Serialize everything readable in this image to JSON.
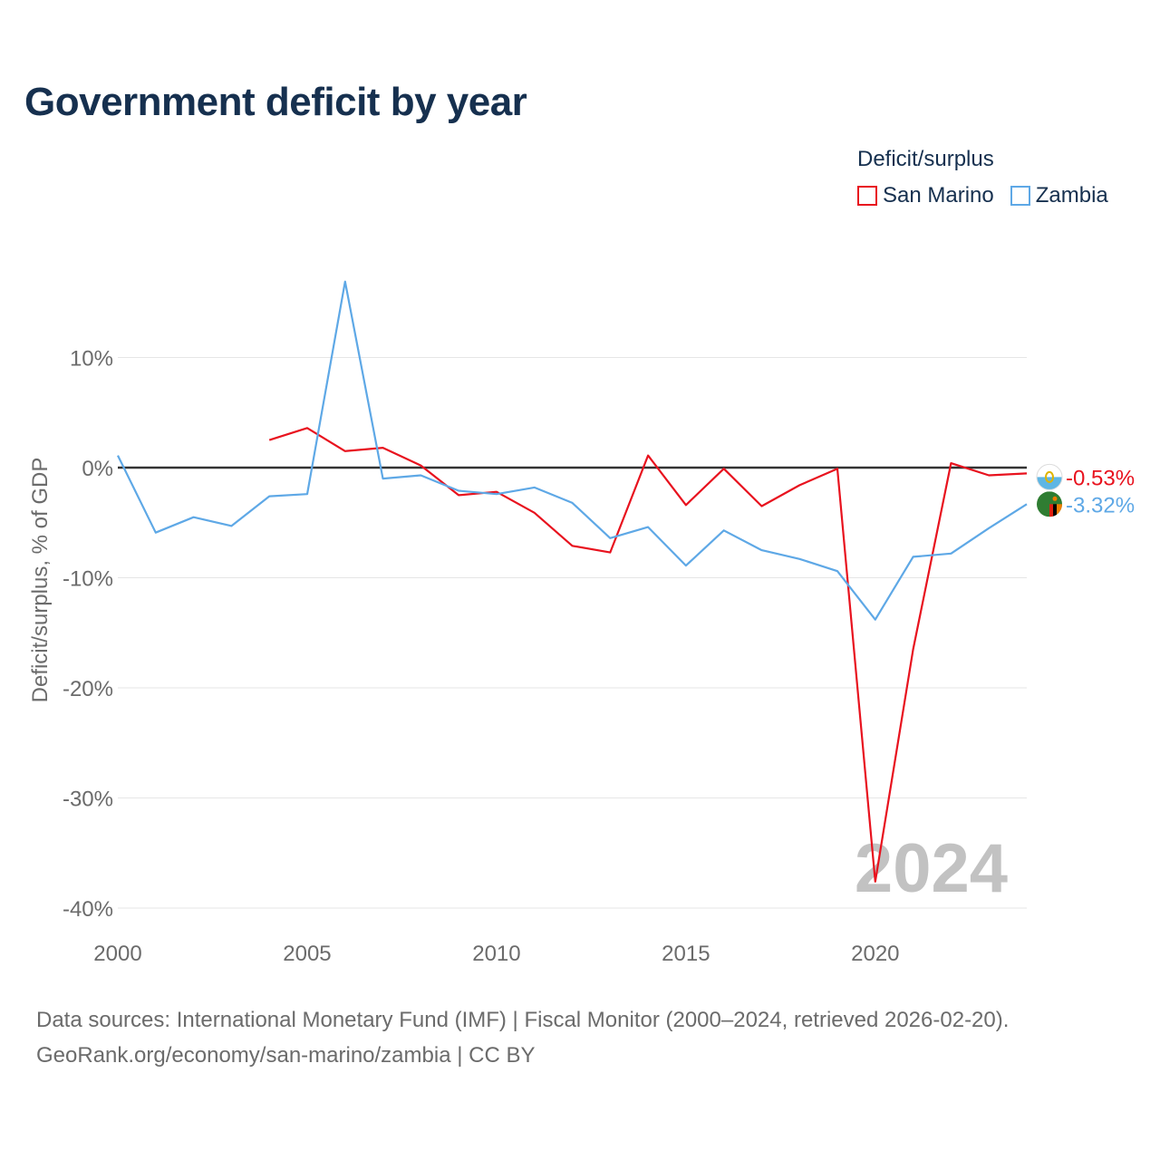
{
  "title": "Government deficit by year",
  "legend": {
    "title": "Deficit/surplus",
    "items": [
      {
        "name": "San Marino",
        "color": "#e8121e"
      },
      {
        "name": "Zambia",
        "color": "#5ea8e6"
      }
    ]
  },
  "footer": {
    "line1": "Data sources: International Monetary Fund (IMF) | Fiscal Monitor (2000–2024, retrieved 2026-02-20).",
    "line2": "GeoRank.org/economy/san-marino/zambia | CC BY"
  },
  "chart_data": {
    "type": "line",
    "title": "Government deficit by year",
    "xlabel": "",
    "ylabel": "Deficit/surplus, % of GDP",
    "xlim": [
      2000,
      2024
    ],
    "ylim": [
      -40,
      18
    ],
    "xticks": [
      2000,
      2005,
      2010,
      2015,
      2020
    ],
    "yticks": [
      10,
      0,
      -10,
      -20,
      -30,
      -40
    ],
    "ytick_labels": [
      "10%",
      "0%",
      "-10%",
      "-20%",
      "-30%",
      "-40%"
    ],
    "zero_line": true,
    "watermark": "2024",
    "series": [
      {
        "name": "San Marino",
        "color": "#e8121e",
        "x": [
          2004,
          2005,
          2006,
          2007,
          2008,
          2009,
          2010,
          2011,
          2012,
          2013,
          2014,
          2015,
          2016,
          2017,
          2018,
          2019,
          2020,
          2021,
          2022,
          2023,
          2024
        ],
        "values": [
          2.5,
          3.6,
          1.5,
          1.8,
          0.2,
          -2.5,
          -2.2,
          -4.1,
          -7.1,
          -7.7,
          1.1,
          -3.4,
          -0.1,
          -3.5,
          -1.6,
          -0.1,
          -37.6,
          -16.5,
          0.4,
          -0.7,
          -0.53
        ],
        "end_label": "-0.53%"
      },
      {
        "name": "Zambia",
        "color": "#5ea8e6",
        "x": [
          2000,
          2001,
          2002,
          2003,
          2004,
          2005,
          2006,
          2007,
          2008,
          2009,
          2010,
          2011,
          2012,
          2013,
          2014,
          2015,
          2016,
          2017,
          2018,
          2019,
          2020,
          2021,
          2022,
          2023,
          2024
        ],
        "values": [
          1.1,
          -5.9,
          -4.5,
          -5.3,
          -2.6,
          -2.4,
          16.9,
          -1.0,
          -0.7,
          -2.1,
          -2.4,
          -1.8,
          -3.2,
          -6.4,
          -5.4,
          -8.9,
          -5.7,
          -7.5,
          -8.3,
          -9.4,
          -13.8,
          -8.1,
          -7.8,
          -5.5,
          -3.32
        ],
        "end_label": "-3.32%"
      }
    ]
  }
}
